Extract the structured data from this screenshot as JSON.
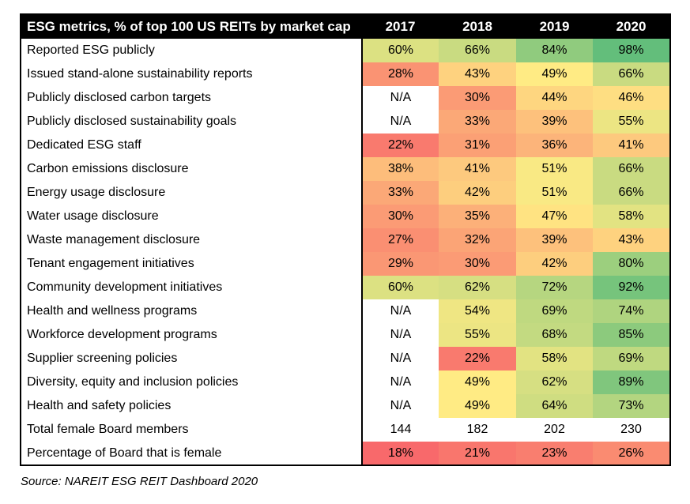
{
  "chart_data": {
    "type": "heatmap",
    "title": "ESG metrics, % of top 100 US REITs by market cap",
    "columns": [
      "2017",
      "2018",
      "2019",
      "2020"
    ],
    "rows": [
      {
        "label": "Reported ESG publicly",
        "format": "percent",
        "values": [
          60,
          66,
          84,
          98
        ]
      },
      {
        "label": "Issued stand-alone sustainability reports",
        "format": "percent",
        "values": [
          28,
          43,
          49,
          66
        ]
      },
      {
        "label": "Publicly disclosed carbon targets",
        "format": "percent",
        "values": [
          "N/A",
          30,
          44,
          46
        ]
      },
      {
        "label": "Publicly disclosed sustainability goals",
        "format": "percent",
        "values": [
          "N/A",
          33,
          39,
          55
        ]
      },
      {
        "label": "Dedicated ESG staff",
        "format": "percent",
        "values": [
          22,
          31,
          36,
          41
        ]
      },
      {
        "label": "Carbon emissions disclosure",
        "format": "percent",
        "values": [
          38,
          41,
          51,
          66
        ]
      },
      {
        "label": "Energy usage disclosure",
        "format": "percent",
        "values": [
          33,
          42,
          51,
          66
        ]
      },
      {
        "label": "Water usage disclosure",
        "format": "percent",
        "values": [
          30,
          35,
          47,
          58
        ]
      },
      {
        "label": "Waste management disclosure",
        "format": "percent",
        "values": [
          27,
          32,
          39,
          43
        ]
      },
      {
        "label": "Tenant engagement initiatives",
        "format": "percent",
        "values": [
          29,
          30,
          42,
          80
        ]
      },
      {
        "label": "Community development initiatives",
        "format": "percent",
        "values": [
          60,
          62,
          72,
          92
        ]
      },
      {
        "label": "Health and wellness programs",
        "format": "percent",
        "values": [
          "N/A",
          54,
          69,
          74
        ]
      },
      {
        "label": "Workforce development programs",
        "format": "percent",
        "values": [
          "N/A",
          55,
          68,
          85
        ]
      },
      {
        "label": "Supplier screening policies",
        "format": "percent",
        "values": [
          "N/A",
          22,
          58,
          69
        ]
      },
      {
        "label": "Diversity, equity and inclusion policies",
        "format": "percent",
        "values": [
          "N/A",
          49,
          62,
          89
        ]
      },
      {
        "label": "Health and safety policies",
        "format": "percent",
        "values": [
          "N/A",
          49,
          64,
          73
        ]
      },
      {
        "label": "Total female Board members",
        "format": "number",
        "values": [
          144,
          182,
          202,
          230
        ]
      },
      {
        "label": "Percentage of Board that is female",
        "format": "percent",
        "values": [
          18,
          21,
          23,
          26
        ]
      }
    ],
    "color_scale": {
      "min_value": 18,
      "mid_value": 49,
      "max_value": 98,
      "min_color": "#F8696B",
      "mid_color": "#FFEB84",
      "max_color": "#63BE7B",
      "na_background": "#FFFFFF"
    },
    "layout": {
      "header_background": "#000000",
      "header_text_color": "#FFFFFF",
      "legend": "none",
      "grid": "off"
    },
    "source": "Source: NAREIT ESG REIT Dashboard 2020"
  }
}
